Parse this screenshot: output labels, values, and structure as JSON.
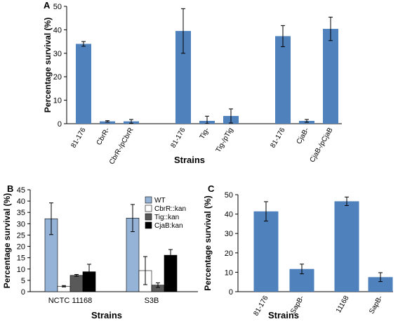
{
  "colors": {
    "bar_blue": "#4f81bd",
    "wt": "#95b3d7",
    "cbrr_kan": "#ffffff",
    "tig_kan": "#595959",
    "cjab_kan": "#000000",
    "axis": "#000000",
    "error_bar": "#000000"
  },
  "chart_data": [
    {
      "panel": "A",
      "type": "bar",
      "ylabel": "Percentage  survival (%)",
      "xlabel": "Strains",
      "ylim": [
        0,
        50
      ],
      "yticks": [
        0,
        10,
        20,
        30,
        40,
        50
      ],
      "grid": false,
      "categories": [
        "81-176",
        "CbrR-",
        "CbrR-/pCbrR",
        "81-176",
        "Tig-",
        "Tig-/pTig",
        "81-176",
        "CjaB-",
        "CjaB-/pCjaB"
      ],
      "values": [
        34,
        1,
        1,
        39.5,
        1.2,
        3.3,
        37.3,
        1.2,
        40.4
      ],
      "errors": [
        1,
        0.3,
        0.8,
        9.5,
        2,
        3,
        4.5,
        0.6,
        5
      ],
      "groups": 3
    },
    {
      "panel": "B",
      "type": "bar",
      "ylabel": "Percentage survival (%)",
      "xlabel": "Strains",
      "ylim": [
        0,
        45
      ],
      "yticks": [
        0,
        5,
        10,
        15,
        20,
        25,
        30,
        35,
        40,
        45
      ],
      "grid": false,
      "legend_position": "top-right",
      "categories": [
        "NCTC 11168",
        "S3B"
      ],
      "series": [
        {
          "name": "WT",
          "values": [
            32.2,
            32.5
          ],
          "errors": [
            7,
            6
          ]
        },
        {
          "name": "CbrR::kan",
          "values": [
            2.4,
            9.3
          ],
          "errors": [
            0.3,
            6.2
          ]
        },
        {
          "name": "Tig::kan",
          "values": [
            7.2,
            2.9
          ],
          "errors": [
            0.4,
            1
          ]
        },
        {
          "name": "CjaB:kan",
          "values": [
            8.8,
            16.1
          ],
          "errors": [
            3.3,
            2.5
          ]
        }
      ]
    },
    {
      "panel": "C",
      "type": "bar",
      "ylabel": "Percentage survival (%)",
      "xlabel": "Strains",
      "ylim": [
        0,
        50
      ],
      "yticks": [
        0,
        10,
        20,
        30,
        40,
        50
      ],
      "grid": false,
      "categories": [
        "81-176",
        "SapB-",
        "11168",
        "SapB-"
      ],
      "values": [
        41.4,
        11.7,
        46.6,
        7.5
      ],
      "errors": [
        5,
        2.5,
        2.2,
        2.3
      ],
      "groups": 2
    }
  ]
}
